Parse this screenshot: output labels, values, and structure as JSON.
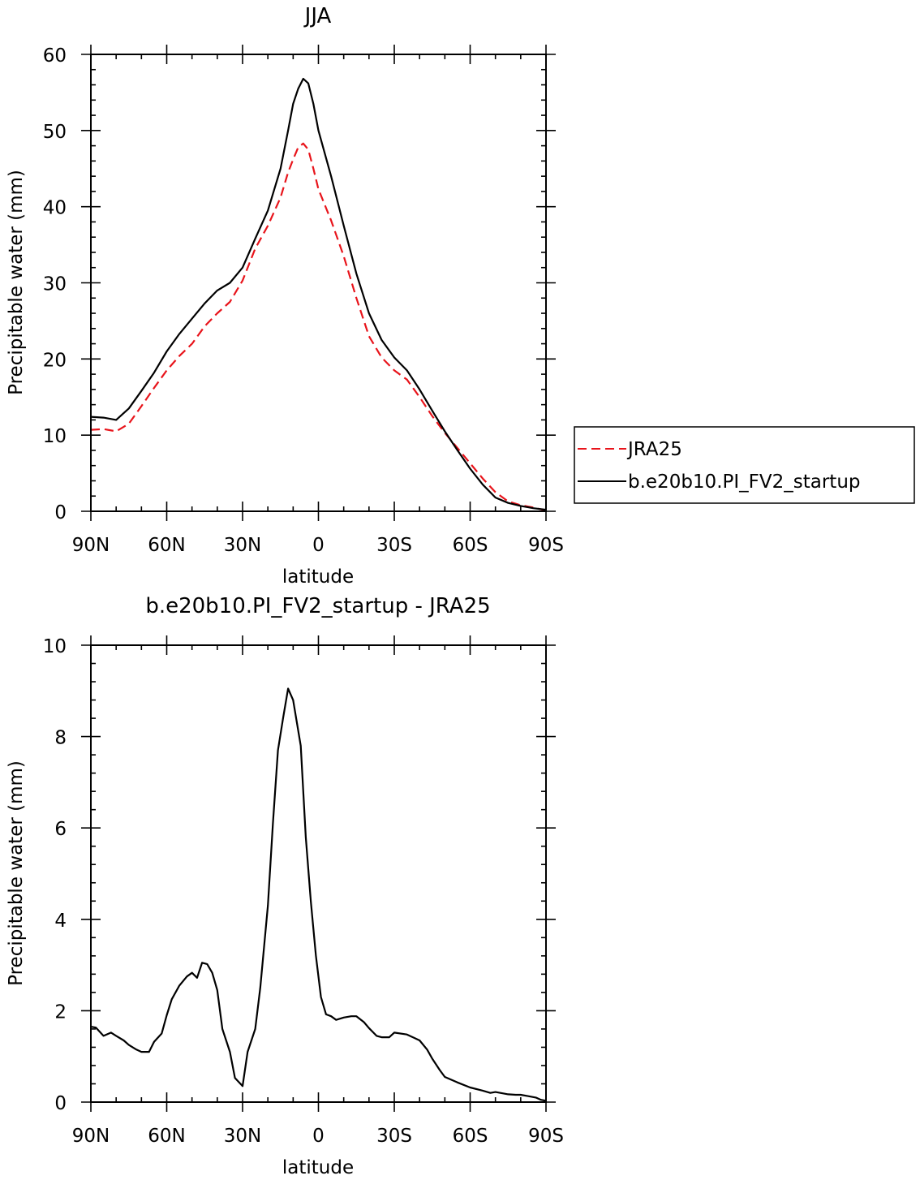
{
  "chart_data": [
    {
      "type": "line",
      "title": "JJA",
      "xlabel": "latitude",
      "ylabel": "Precipitable water (mm)",
      "xlim": [
        90,
        -90
      ],
      "ylim": [
        0,
        60
      ],
      "xticks": [
        90,
        60,
        30,
        0,
        -30,
        -60,
        -90
      ],
      "xtick_labels": [
        "90N",
        "60N",
        "30N",
        "0",
        "30S",
        "60S",
        "90S"
      ],
      "yticks": [
        0,
        10,
        20,
        30,
        40,
        50,
        60
      ],
      "ytick_labels": [
        "0",
        "10",
        "20",
        "30",
        "40",
        "50",
        "60"
      ],
      "grid": false,
      "legend": {
        "placement": "right-outside"
      },
      "series": [
        {
          "name": "JRA25",
          "color": "#e8141b",
          "dash": "dashed",
          "x": [
            90,
            85,
            80,
            75,
            70,
            65,
            60,
            55,
            50,
            45,
            40,
            35,
            30,
            25,
            20,
            15,
            12,
            10,
            8,
            6,
            4,
            2,
            0,
            -5,
            -10,
            -15,
            -20,
            -25,
            -30,
            -35,
            -40,
            -45,
            -50,
            -55,
            -60,
            -65,
            -70,
            -75,
            -80,
            -85,
            -90
          ],
          "y": [
            10.7,
            10.8,
            10.5,
            11.5,
            13.8,
            16.2,
            18.5,
            20.4,
            22.0,
            24.3,
            26.0,
            27.5,
            30.3,
            34.5,
            37.5,
            41.2,
            44.5,
            46.2,
            47.8,
            48.3,
            47.5,
            45.0,
            42.3,
            38.2,
            33.5,
            28.0,
            23.0,
            20.2,
            18.5,
            17.3,
            15.0,
            12.5,
            10.3,
            8.3,
            6.3,
            4.3,
            2.5,
            1.3,
            0.8,
            0.5,
            0.1
          ]
        },
        {
          "name": "b.e20b10.PI_FV2_startup",
          "color": "#000000",
          "dash": "solid",
          "x": [
            90,
            85,
            80,
            75,
            70,
            65,
            60,
            55,
            50,
            45,
            40,
            35,
            30,
            25,
            20,
            15,
            12,
            10,
            8,
            6,
            4,
            2,
            0,
            -5,
            -10,
            -15,
            -20,
            -25,
            -30,
            -35,
            -40,
            -45,
            -50,
            -55,
            -60,
            -65,
            -70,
            -75,
            -80,
            -85,
            -90
          ],
          "y": [
            12.4,
            12.3,
            12.0,
            13.5,
            15.8,
            18.2,
            21.0,
            23.3,
            25.3,
            27.3,
            29.0,
            30.0,
            32.0,
            35.8,
            39.5,
            45.0,
            50.0,
            53.5,
            55.5,
            56.8,
            56.2,
            53.5,
            50.0,
            44.0,
            37.5,
            31.2,
            26.0,
            22.5,
            20.2,
            18.5,
            16.0,
            13.2,
            10.5,
            8.0,
            5.6,
            3.5,
            1.8,
            1.1,
            0.7,
            0.4,
            0.2
          ]
        }
      ]
    },
    {
      "type": "line",
      "title": "b.e20b10.PI_FV2_startup - JRA25",
      "xlabel": "latitude",
      "ylabel": "Precipitable water (mm)",
      "xlim": [
        90,
        -90
      ],
      "ylim": [
        0,
        10
      ],
      "xticks": [
        90,
        60,
        30,
        0,
        -30,
        -60,
        -90
      ],
      "xtick_labels": [
        "90N",
        "60N",
        "30N",
        "0",
        "30S",
        "60S",
        "90S"
      ],
      "yticks": [
        0,
        2,
        4,
        6,
        8,
        10
      ],
      "ytick_labels": [
        "0",
        "2",
        "4",
        "6",
        "8",
        "10"
      ],
      "grid": false,
      "series": [
        {
          "color": "#000000",
          "dash": "solid",
          "x": [
            90,
            88,
            85,
            82,
            80,
            77,
            75,
            72,
            70,
            67,
            65,
            62,
            60,
            58,
            55,
            52,
            50,
            48,
            46,
            44,
            42,
            40,
            38,
            35,
            33,
            30,
            28,
            25,
            23,
            20,
            18,
            16,
            14,
            12,
            10,
            7,
            5,
            3,
            1,
            -1,
            -3,
            -5,
            -7,
            -10,
            -13,
            -15,
            -18,
            -20,
            -23,
            -25,
            -28,
            -30,
            -35,
            -40,
            -43,
            -45,
            -48,
            -50,
            -55,
            -60,
            -65,
            -68,
            -70,
            -75,
            -78,
            -80,
            -83,
            -86,
            -88,
            -90
          ],
          "y": [
            1.65,
            1.63,
            1.45,
            1.52,
            1.45,
            1.35,
            1.25,
            1.15,
            1.1,
            1.1,
            1.32,
            1.5,
            1.9,
            2.25,
            2.55,
            2.75,
            2.83,
            2.72,
            3.05,
            3.02,
            2.83,
            2.45,
            1.6,
            1.1,
            0.53,
            0.35,
            1.1,
            1.6,
            2.5,
            4.3,
            6.1,
            7.7,
            8.4,
            9.05,
            8.8,
            7.8,
            5.8,
            4.4,
            3.2,
            2.3,
            1.92,
            1.88,
            1.8,
            1.85,
            1.88,
            1.88,
            1.75,
            1.62,
            1.45,
            1.42,
            1.42,
            1.52,
            1.48,
            1.35,
            1.15,
            0.95,
            0.7,
            0.55,
            0.43,
            0.32,
            0.25,
            0.2,
            0.22,
            0.17,
            0.16,
            0.16,
            0.13,
            0.1,
            0.05,
            0.03
          ]
        }
      ]
    }
  ]
}
